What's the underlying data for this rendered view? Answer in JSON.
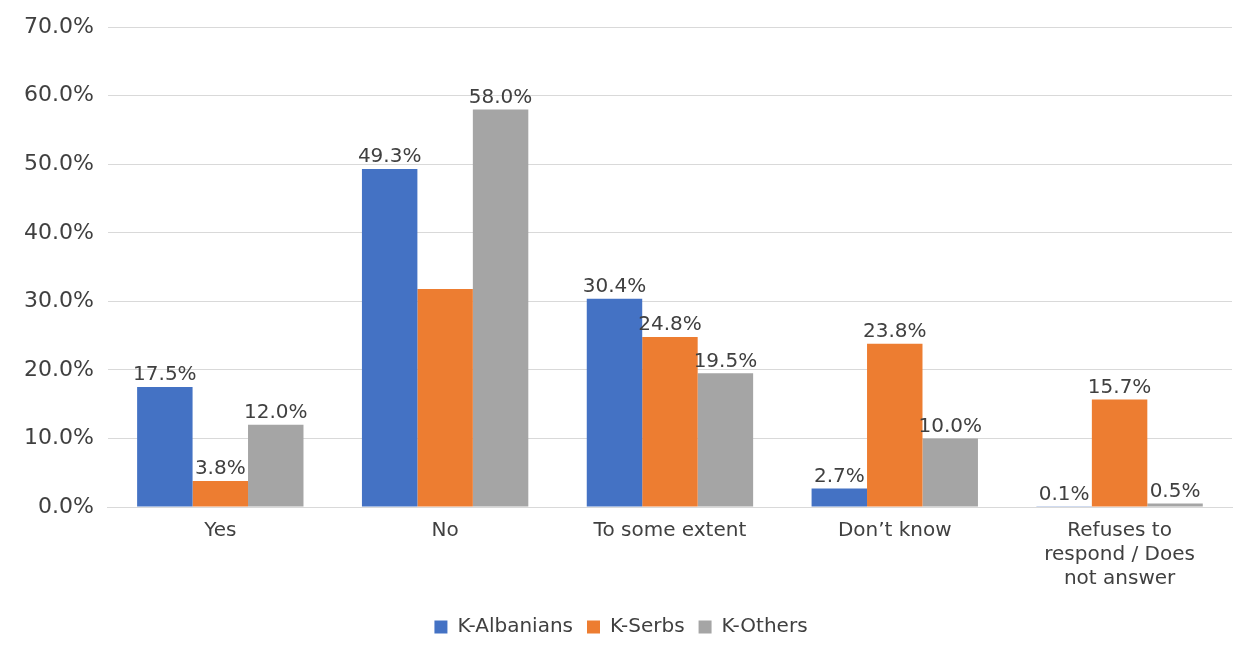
{
  "chart_data": {
    "type": "bar",
    "categories": [
      "Yes",
      "No",
      "To some extent",
      "Don’t know",
      "Refuses to respond / Does not answer"
    ],
    "series": [
      {
        "name": "K-Albanians",
        "color": "#4472c4",
        "values": [
          17.5,
          49.3,
          30.4,
          2.7,
          0.1
        ],
        "value_labels": [
          "17.5%",
          "49.3%",
          "30.4%",
          "2.7%",
          "0.1%"
        ]
      },
      {
        "name": "K-Serbs",
        "color": "#ed7d31",
        "values": [
          3.8,
          31.8,
          24.8,
          23.8,
          15.7
        ],
        "value_labels": [
          "3.8%",
          null,
          "24.8%",
          "23.8%",
          "15.7%"
        ]
      },
      {
        "name": "K-Others",
        "color": "#a5a5a5",
        "values": [
          12.0,
          58.0,
          19.5,
          10.0,
          0.5
        ],
        "value_labels": [
          "12.0%",
          "58.0%",
          "19.5%",
          "10.0%",
          "0.5%"
        ]
      }
    ],
    "ylim": [
      0,
      70
    ],
    "yticks": [
      {
        "value": 0,
        "label": "0.0%"
      },
      {
        "value": 10,
        "label": "10.0%"
      },
      {
        "value": 20,
        "label": "20.0%"
      },
      {
        "value": 30,
        "label": "30.0%"
      },
      {
        "value": 40,
        "label": "40.0%"
      },
      {
        "value": 50,
        "label": "50.0%"
      },
      {
        "value": 60,
        "label": "60.0%"
      },
      {
        "value": 70,
        "label": "70.0%"
      }
    ],
    "grid": "y",
    "legend": "bottom"
  }
}
